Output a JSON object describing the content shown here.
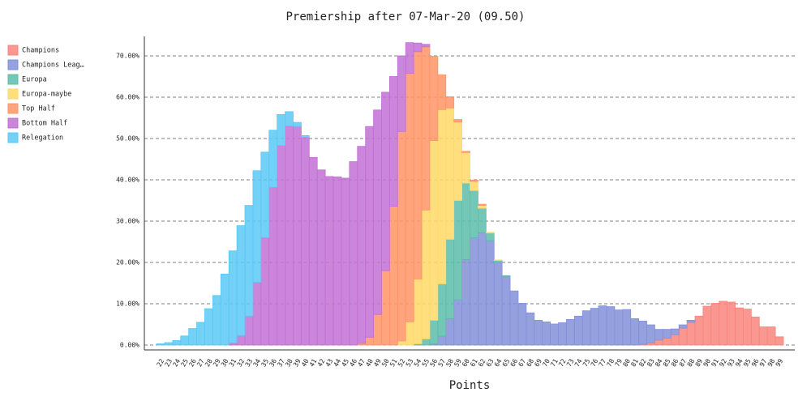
{
  "chart_data": {
    "type": "stacked_bar",
    "title": "Premiership after 07-Mar-20 (09.50)",
    "x_label": "Points",
    "categories": [
      22,
      23,
      24,
      25,
      26,
      27,
      28,
      29,
      30,
      31,
      32,
      33,
      34,
      35,
      36,
      37,
      38,
      39,
      40,
      41,
      42,
      43,
      44,
      45,
      46,
      47,
      48,
      49,
      50,
      51,
      52,
      53,
      54,
      55,
      56,
      57,
      58,
      59,
      60,
      61,
      62,
      63,
      64,
      65,
      66,
      67,
      68,
      69,
      70,
      71,
      72,
      73,
      74,
      75,
      76,
      77,
      78,
      79,
      80,
      81,
      82,
      83,
      84,
      85,
      86,
      87,
      88,
      89,
      90,
      91,
      92,
      93,
      94,
      95,
      96,
      97,
      98,
      99
    ],
    "series": [
      {
        "name": "Champions",
        "color": "#f8857c",
        "values": [
          0,
          0,
          0,
          0,
          0,
          0,
          0,
          0,
          0,
          0,
          0,
          0,
          0,
          0,
          0,
          0,
          0,
          0,
          0,
          0,
          0,
          0,
          0,
          0,
          0,
          0,
          0,
          0,
          0,
          0,
          0,
          0,
          0,
          0,
          0,
          0,
          0,
          0,
          0,
          0,
          0,
          0,
          0,
          0,
          0,
          0,
          0,
          0,
          0,
          0,
          0,
          0,
          0,
          0,
          0,
          0,
          0,
          0,
          0,
          0,
          0.2,
          0.5,
          1.2,
          1.7,
          2.5,
          4.1,
          5.5,
          7,
          9.4,
          10.1,
          10.6,
          10.4,
          9,
          8.7,
          6.8,
          4.4,
          4.4,
          2
        ]
      },
      {
        "name": "Champions Leag…",
        "color": "#8391d9",
        "values": [
          0,
          0,
          0,
          0,
          0,
          0,
          0,
          0,
          0,
          0,
          0,
          0,
          0,
          0,
          0,
          0,
          0,
          0,
          0,
          0,
          0,
          0,
          0,
          0,
          0,
          0,
          0,
          0,
          0,
          0,
          0,
          0,
          0,
          0,
          0.3,
          2.2,
          6.4,
          11,
          20.7,
          26,
          27.2,
          25.3,
          20,
          16.6,
          13.1,
          10.1,
          7.8,
          6,
          5.6,
          5.1,
          5.4,
          6.2,
          7,
          8.3,
          8.9,
          9.5,
          9.3,
          8.5,
          8.6,
          6.4,
          5.6,
          4.4,
          2.6,
          2.1,
          1.4,
          0.8,
          0.5,
          0,
          0,
          0,
          0,
          0,
          0,
          0,
          0,
          0,
          0,
          0
        ]
      },
      {
        "name": "Europa",
        "color": "#5cbdaa",
        "values": [
          0,
          0,
          0,
          0,
          0,
          0,
          0,
          0,
          0,
          0,
          0,
          0,
          0,
          0,
          0,
          0,
          0,
          0,
          0,
          0,
          0,
          0,
          0,
          0,
          0,
          0,
          0,
          0,
          0,
          0,
          0,
          0,
          0.3,
          1.5,
          5.7,
          12.6,
          19.2,
          24,
          18.5,
          11.4,
          5.9,
          1.8,
          0.5,
          0.2,
          0,
          0,
          0,
          0,
          0,
          0,
          0,
          0,
          0,
          0,
          0,
          0,
          0,
          0,
          0,
          0,
          0,
          0,
          0,
          0,
          0,
          0,
          0,
          0,
          0,
          0,
          0,
          0,
          0,
          0,
          0,
          0,
          0,
          0
        ]
      },
      {
        "name": "Europa-maybe",
        "color": "#ffd966",
        "values": [
          0,
          0,
          0,
          0,
          0,
          0,
          0,
          0,
          0,
          0,
          0,
          0,
          0,
          0,
          0,
          0,
          0,
          0,
          0,
          0,
          0,
          0,
          0,
          0,
          0,
          0,
          0,
          0,
          0,
          0,
          1,
          5.6,
          15.7,
          31.2,
          43.5,
          42.2,
          31.8,
          19,
          7.4,
          2.2,
          0.7,
          0.2,
          0.1,
          0,
          0,
          0,
          0,
          0,
          0,
          0,
          0,
          0,
          0,
          0,
          0,
          0,
          0,
          0,
          0,
          0,
          0,
          0,
          0,
          0,
          0,
          0,
          0,
          0,
          0,
          0,
          0,
          0,
          0,
          0,
          0,
          0,
          0,
          0
        ]
      },
      {
        "name": "Top Half",
        "color": "#ff9466",
        "values": [
          0,
          0,
          0,
          0,
          0,
          0,
          0,
          0,
          0,
          0,
          0,
          0,
          0,
          0,
          0,
          0,
          0,
          0,
          0,
          0,
          0,
          0,
          0,
          0,
          0,
          0.4,
          1.9,
          7.4,
          18,
          33.6,
          50.7,
          60.2,
          55,
          39.5,
          20.4,
          8.4,
          2.7,
          0.6,
          0.3,
          0.3,
          0.3,
          0,
          0,
          0,
          0,
          0,
          0,
          0,
          0,
          0,
          0,
          0,
          0,
          0,
          0,
          0,
          0,
          0,
          0,
          0,
          0,
          0,
          0,
          0,
          0,
          0,
          0,
          0,
          0,
          0,
          0,
          0,
          0,
          0,
          0,
          0,
          0,
          0
        ]
      },
      {
        "name": "Bottom Half",
        "color": "#c270d4",
        "values": [
          0,
          0,
          0,
          0,
          0,
          0,
          0,
          0,
          0,
          0.5,
          2.3,
          7,
          15.2,
          26,
          38.2,
          48.3,
          53,
          52.9,
          50.3,
          45.4,
          42.4,
          40.8,
          40.7,
          40.4,
          44.4,
          47.7,
          51,
          49.5,
          43.2,
          31.4,
          18.3,
          7.4,
          2.1,
          0.6,
          0,
          0,
          0,
          0,
          0,
          0,
          0,
          0,
          0,
          0,
          0,
          0,
          0,
          0,
          0,
          0,
          0,
          0,
          0,
          0,
          0,
          0,
          0,
          0,
          0,
          0,
          0,
          0,
          0,
          0,
          0,
          0,
          0,
          0,
          0,
          0,
          0,
          0,
          0,
          0,
          0,
          0,
          0,
          0
        ]
      },
      {
        "name": "Relegation",
        "color": "#5bc8f5",
        "values": [
          0.3,
          0.6,
          1.1,
          2.2,
          4,
          5.5,
          8.8,
          12,
          17.2,
          22.3,
          26.6,
          26.8,
          27,
          20.7,
          13.8,
          7.5,
          3.5,
          1,
          0.4,
          0,
          0,
          0,
          0,
          0,
          0,
          0,
          0,
          0,
          0,
          0,
          0,
          0,
          0,
          0,
          0,
          0,
          0,
          0,
          0,
          0,
          0,
          0,
          0,
          0,
          0,
          0,
          0,
          0,
          0,
          0,
          0,
          0,
          0,
          0,
          0,
          0,
          0,
          0,
          0,
          0,
          0,
          0,
          0,
          0,
          0,
          0,
          0,
          0,
          0,
          0,
          0,
          0,
          0,
          0,
          0,
          0,
          0,
          0
        ]
      }
    ],
    "ylim": [
      0,
      74.7
    ],
    "yticks": [
      {
        "value": 0,
        "label": "0.00%"
      },
      {
        "value": 10,
        "label": "10.00%"
      },
      {
        "value": 20,
        "label": "20.00%"
      },
      {
        "value": 30,
        "label": "30.00%"
      },
      {
        "value": 40,
        "label": "40.00%"
      },
      {
        "value": 50,
        "label": "50.00%"
      },
      {
        "value": 60,
        "label": "60.00%"
      },
      {
        "value": 70,
        "label": "70.00%"
      }
    ],
    "grid": true,
    "legend": "left"
  }
}
